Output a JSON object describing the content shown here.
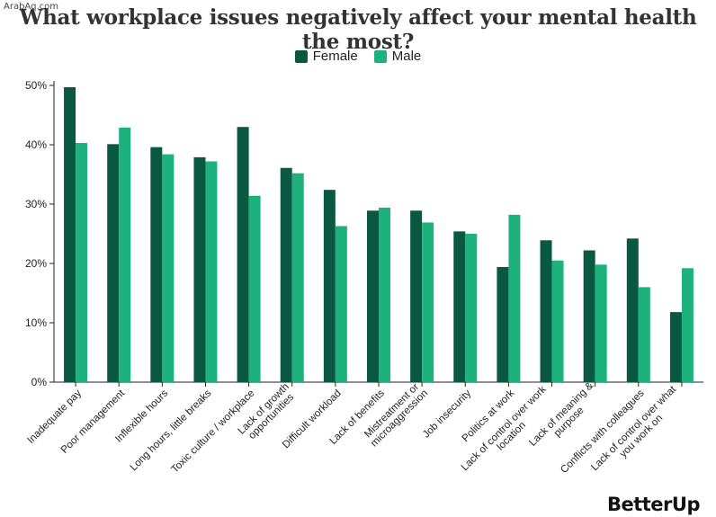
{
  "watermark": "ArabAq.com",
  "brand": "BetterUp",
  "colors": {
    "female": "#0b5842",
    "male": "#1db27c",
    "axis": "#222222"
  },
  "chart_data": {
    "type": "bar",
    "title": "What workplace issues negatively affect your mental health the most?",
    "xlabel": "",
    "ylabel": "",
    "ylim": [
      0,
      50
    ],
    "yticks": [
      0,
      10,
      20,
      30,
      40,
      50
    ],
    "ytick_labels": [
      "0%",
      "10%",
      "20%",
      "30%",
      "40%",
      "50%"
    ],
    "grid": false,
    "legend_position": "top-center",
    "categories": [
      [
        "Inadequate pay"
      ],
      [
        "Poor management"
      ],
      [
        "Inflexible hours"
      ],
      [
        "Long hours, little breaks"
      ],
      [
        "Toxic culture / workplace"
      ],
      [
        "Lack of growth",
        "opportunities"
      ],
      [
        "Difficult workload"
      ],
      [
        "Lack of benefits"
      ],
      [
        "Mistreatment or",
        "microaggression"
      ],
      [
        "Job insecurity"
      ],
      [
        "Politics at work"
      ],
      [
        "Lack of control over work",
        "location"
      ],
      [
        "Lack of meaning &",
        "purpose"
      ],
      [
        "Conflicts with colleagues"
      ],
      [
        "Lack of control over what",
        "you work on"
      ]
    ],
    "series": [
      {
        "name": "Female",
        "values": [
          49.7,
          40.1,
          39.6,
          37.9,
          43.0,
          36.1,
          32.4,
          28.9,
          28.9,
          25.4,
          19.4,
          23.9,
          22.2,
          24.2,
          11.8
        ]
      },
      {
        "name": "Male",
        "values": [
          40.3,
          42.9,
          38.4,
          37.2,
          31.4,
          35.2,
          26.3,
          29.4,
          26.9,
          25.0,
          28.2,
          20.5,
          19.8,
          16.0,
          19.2
        ]
      }
    ]
  }
}
